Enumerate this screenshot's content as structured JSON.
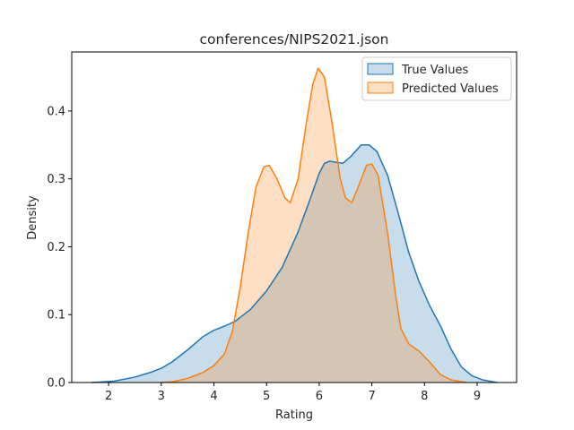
{
  "chart_data": {
    "type": "area",
    "title": "conferences/NIPS2021.json",
    "xlabel": "Rating",
    "ylabel": "Density",
    "xlim": [
      1.3,
      9.75
    ],
    "ylim": [
      0,
      0.487
    ],
    "xticks": [
      "2",
      "3",
      "4",
      "5",
      "6",
      "7",
      "8",
      "9"
    ],
    "yticks": [
      "0.0",
      "0.1",
      "0.2",
      "0.3",
      "0.4"
    ],
    "legend_position": "top-right",
    "series": [
      {
        "name": "True Values",
        "color": "#1f77b4",
        "fill": "#1f77b4",
        "points": [
          [
            1.68,
            0.0
          ],
          [
            1.9,
            0.001
          ],
          [
            2.1,
            0.002
          ],
          [
            2.5,
            0.008
          ],
          [
            2.8,
            0.015
          ],
          [
            3.0,
            0.021
          ],
          [
            3.2,
            0.03
          ],
          [
            3.5,
            0.048
          ],
          [
            3.8,
            0.068
          ],
          [
            4.0,
            0.077
          ],
          [
            4.2,
            0.083
          ],
          [
            4.4,
            0.09
          ],
          [
            4.7,
            0.108
          ],
          [
            5.0,
            0.135
          ],
          [
            5.3,
            0.17
          ],
          [
            5.6,
            0.222
          ],
          [
            5.85,
            0.275
          ],
          [
            6.0,
            0.308
          ],
          [
            6.1,
            0.323
          ],
          [
            6.2,
            0.326
          ],
          [
            6.45,
            0.323
          ],
          [
            6.6,
            0.333
          ],
          [
            6.8,
            0.35
          ],
          [
            6.95,
            0.35
          ],
          [
            7.1,
            0.34
          ],
          [
            7.3,
            0.305
          ],
          [
            7.5,
            0.25
          ],
          [
            7.7,
            0.192
          ],
          [
            7.9,
            0.148
          ],
          [
            8.1,
            0.113
          ],
          [
            8.3,
            0.084
          ],
          [
            8.5,
            0.05
          ],
          [
            8.7,
            0.023
          ],
          [
            8.9,
            0.01
          ],
          [
            9.1,
            0.004
          ],
          [
            9.38,
            0.0
          ]
        ]
      },
      {
        "name": "Predicted Values",
        "color": "#ff7f0e",
        "fill": "#ff7f0e",
        "points": [
          [
            3.0,
            0.0
          ],
          [
            3.2,
            0.001
          ],
          [
            3.5,
            0.006
          ],
          [
            3.8,
            0.015
          ],
          [
            4.0,
            0.025
          ],
          [
            4.2,
            0.042
          ],
          [
            4.35,
            0.075
          ],
          [
            4.5,
            0.14
          ],
          [
            4.65,
            0.22
          ],
          [
            4.8,
            0.288
          ],
          [
            4.95,
            0.318
          ],
          [
            5.05,
            0.32
          ],
          [
            5.2,
            0.3
          ],
          [
            5.35,
            0.272
          ],
          [
            5.45,
            0.265
          ],
          [
            5.6,
            0.3
          ],
          [
            5.75,
            0.38
          ],
          [
            5.88,
            0.44
          ],
          [
            5.98,
            0.463
          ],
          [
            6.1,
            0.45
          ],
          [
            6.25,
            0.38
          ],
          [
            6.4,
            0.3
          ],
          [
            6.5,
            0.272
          ],
          [
            6.62,
            0.265
          ],
          [
            6.75,
            0.29
          ],
          [
            6.9,
            0.32
          ],
          [
            7.0,
            0.322
          ],
          [
            7.12,
            0.305
          ],
          [
            7.3,
            0.22
          ],
          [
            7.45,
            0.13
          ],
          [
            7.55,
            0.08
          ],
          [
            7.7,
            0.057
          ],
          [
            7.9,
            0.046
          ],
          [
            8.1,
            0.03
          ],
          [
            8.3,
            0.012
          ],
          [
            8.5,
            0.004
          ],
          [
            8.8,
            0.0
          ]
        ]
      }
    ]
  }
}
